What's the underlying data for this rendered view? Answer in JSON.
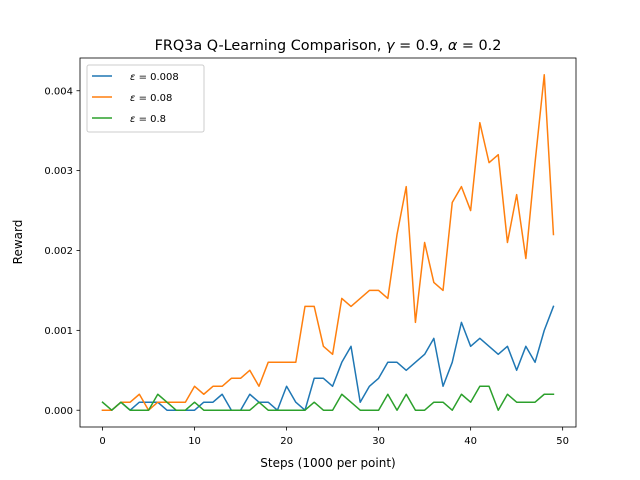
{
  "chart_data": {
    "type": "line",
    "title": "FRQ3a Q-Learning Comparison, γ = 0.9, α = 0.2",
    "title_parts": {
      "prefix": "FRQ3a Q-Learning Comparison, ",
      "gamma_symbol": "γ",
      "gamma_eq": " = 0.9, ",
      "alpha_symbol": "α",
      "alpha_eq": " = 0.2"
    },
    "xlabel": "Steps (1000 per point)",
    "ylabel": "Reward",
    "xlim": [
      -2.45,
      51.45
    ],
    "ylim": [
      -0.00021,
      0.00441
    ],
    "xticks": [
      0,
      10,
      20,
      30,
      40,
      50
    ],
    "yticks": [
      0.0,
      0.001,
      0.002,
      0.003,
      0.004
    ],
    "ytick_labels": [
      "0.000",
      "0.001",
      "0.002",
      "0.003",
      "0.004"
    ],
    "grid": false,
    "legend_position": "upper-left",
    "x": [
      0,
      1,
      2,
      3,
      4,
      5,
      6,
      7,
      8,
      9,
      10,
      11,
      12,
      13,
      14,
      15,
      16,
      17,
      18,
      19,
      20,
      21,
      22,
      23,
      24,
      25,
      26,
      27,
      28,
      29,
      30,
      31,
      32,
      33,
      34,
      35,
      36,
      37,
      38,
      39,
      40,
      41,
      42,
      43,
      44,
      45,
      46,
      47,
      48,
      49
    ],
    "series": [
      {
        "name": "ε = 0.008",
        "symbol": "ε",
        "value_label": " = 0.008",
        "color": "#1f77b4",
        "values": [
          0.0,
          0.0,
          0.0001,
          0.0,
          0.0001,
          0.0001,
          0.0001,
          0.0,
          0.0,
          0.0,
          0.0,
          0.0001,
          0.0001,
          0.0002,
          0.0,
          0.0,
          0.0002,
          0.0001,
          0.0001,
          0.0,
          0.0003,
          0.0001,
          0.0,
          0.0004,
          0.0004,
          0.0003,
          0.0006,
          0.0008,
          0.0001,
          0.0003,
          0.0004,
          0.0006,
          0.0006,
          0.0005,
          0.0006,
          0.0007,
          0.0009,
          0.0003,
          0.0006,
          0.0011,
          0.0008,
          0.0009,
          0.0008,
          0.0007,
          0.0008,
          0.0005,
          0.0008,
          0.0006,
          0.001,
          0.0013
        ]
      },
      {
        "name": "ε = 0.08",
        "symbol": "ε",
        "value_label": " = 0.08",
        "color": "#ff7f0e",
        "values": [
          0.0,
          0.0,
          0.0001,
          0.0001,
          0.0002,
          0.0,
          0.0001,
          0.0001,
          0.0001,
          0.0001,
          0.0003,
          0.0002,
          0.0003,
          0.0003,
          0.0004,
          0.0004,
          0.0005,
          0.0003,
          0.0006,
          0.0006,
          0.0006,
          0.0006,
          0.0013,
          0.0013,
          0.0008,
          0.0007,
          0.0014,
          0.0013,
          0.0014,
          0.0015,
          0.0015,
          0.0014,
          0.0022,
          0.0028,
          0.0011,
          0.0021,
          0.0016,
          0.0015,
          0.0026,
          0.0028,
          0.0025,
          0.0036,
          0.0031,
          0.0032,
          0.0021,
          0.0027,
          0.0019,
          0.0031,
          0.0042,
          0.0022
        ]
      },
      {
        "name": "ε = 0.8",
        "symbol": "ε",
        "value_label": " = 0.8",
        "color": "#2ca02c",
        "values": [
          0.0001,
          0.0,
          0.0001,
          0.0,
          0.0,
          0.0,
          0.0002,
          0.0001,
          0.0,
          0.0,
          0.0001,
          0.0,
          0.0,
          0.0,
          0.0,
          0.0,
          0.0,
          0.0001,
          0.0,
          0.0,
          0.0,
          0.0,
          0.0,
          0.0001,
          0.0,
          0.0,
          0.0002,
          0.0001,
          0.0,
          0.0,
          0.0,
          0.0002,
          0.0,
          0.0002,
          0.0,
          0.0,
          0.0001,
          0.0001,
          0.0,
          0.0002,
          0.0001,
          0.0003,
          0.0003,
          0.0,
          0.0002,
          0.0001,
          0.0001,
          0.0001,
          0.0002,
          0.0002
        ]
      }
    ]
  }
}
